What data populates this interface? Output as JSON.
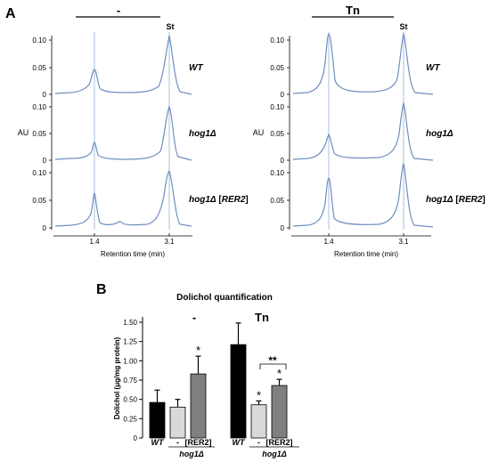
{
  "panel_a": {
    "label": "A",
    "y_axis_label": "AU",
    "x_axis_label": "Retention time (min)",
    "x_ticks": [
      "1.4",
      "3.1"
    ],
    "y_ticks": [
      "0.10",
      "0.05",
      "0"
    ],
    "standard_label": "St",
    "line_color": "#6e8fc0",
    "guide_color": "#a9c1e2",
    "groups": [
      {
        "condition": "-",
        "rows": [
          {
            "genotype_main": "WT",
            "genotype_extra": ""
          },
          {
            "genotype_main": "hog1Δ",
            "genotype_extra": ""
          },
          {
            "genotype_main": "hog1Δ",
            "genotype_extra": "RER2"
          }
        ]
      },
      {
        "condition": "Tn",
        "rows": [
          {
            "genotype_main": "WT",
            "genotype_extra": ""
          },
          {
            "genotype_main": "hog1Δ",
            "genotype_extra": ""
          },
          {
            "genotype_main": "hog1Δ",
            "genotype_extra": "RER2"
          }
        ]
      }
    ]
  },
  "chart_data": {
    "type": "bar",
    "panel_label": "B",
    "title": "Dolichol quantification",
    "ylabel": "Dolichol (μg/mg protein)",
    "ylim": [
      0,
      1.5
    ],
    "yticks": [
      "0",
      "0.25",
      "0.50",
      "0.75",
      "1.00",
      "1.25",
      "1.50"
    ],
    "group_label": "hog1Δ",
    "groups": [
      {
        "condition": "-",
        "bars": [
          {
            "label": "WT",
            "value": 0.46,
            "error": 0.16,
            "color": "#000000",
            "sig": ""
          },
          {
            "label": "-",
            "value": 0.4,
            "error": 0.1,
            "color": "#d9d9d9",
            "sig": ""
          },
          {
            "label": "[RER2]",
            "value": 0.83,
            "error": 0.23,
            "color": "#7f7f7f",
            "sig": "*"
          }
        ]
      },
      {
        "condition": "Tn",
        "bars": [
          {
            "label": "WT",
            "value": 1.21,
            "error": 0.28,
            "color": "#000000",
            "sig": ""
          },
          {
            "label": "-",
            "value": 0.43,
            "error": 0.05,
            "color": "#d9d9d9",
            "sig": "*"
          },
          {
            "label": "[RER2]",
            "value": 0.68,
            "error": 0.08,
            "color": "#7f7f7f",
            "sig": "*"
          }
        ],
        "bracket_sig": "**"
      }
    ]
  }
}
